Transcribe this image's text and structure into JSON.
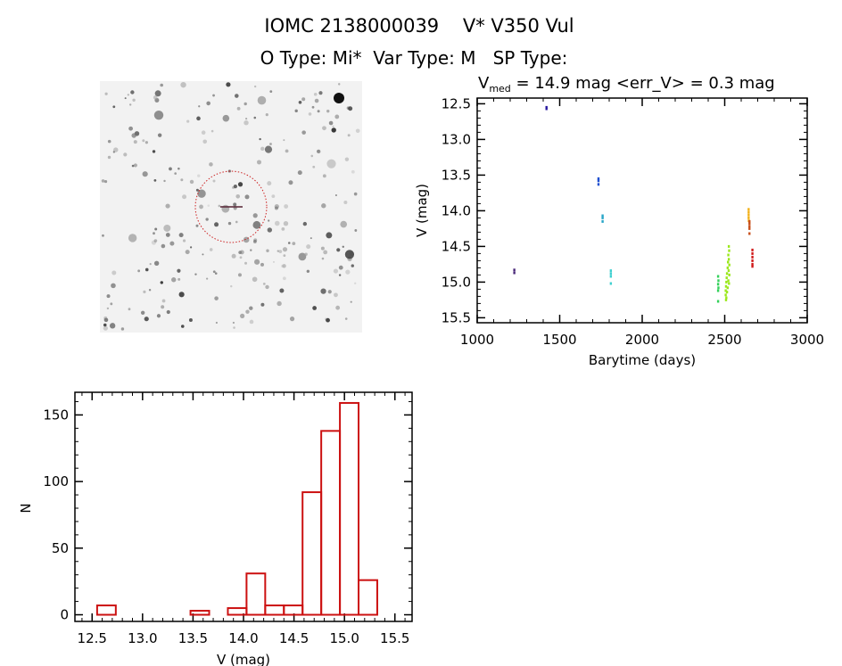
{
  "header": {
    "title": "IOMC 2138000039    V* V350 Vul",
    "subtitle": "O Type: Mi*  Var Type: M   SP Type:"
  },
  "thumbnail": {
    "type": "sky-image-cutout"
  },
  "chart_data": [
    {
      "type": "scatter",
      "title_main": "V",
      "title_sub": "med",
      "title_rest": " = 14.9 mag <err_V> = 0.3 mag",
      "xlabel": "Barytime (days)",
      "ylabel": "V (mag)",
      "xlim": [
        1000,
        3000
      ],
      "ylim": [
        15.57,
        12.42
      ],
      "xticks": [
        1000,
        1500,
        2000,
        2500,
        3000
      ],
      "yticks": [
        "12.5",
        "13.0",
        "13.5",
        "14.0",
        "14.5",
        "15.0",
        "15.5"
      ],
      "series": [
        {
          "name": "s1",
          "color": "#4b2a7a",
          "points": [
            [
              1225,
              14.83
            ],
            [
              1225,
              14.87
            ]
          ]
        },
        {
          "name": "s2",
          "color": "#2a1aa0",
          "points": [
            [
              1420,
              12.55
            ],
            [
              1420,
              12.57
            ]
          ]
        },
        {
          "name": "s3",
          "color": "#1f4fd0",
          "points": [
            [
              1735,
              13.55
            ],
            [
              1735,
              13.58
            ],
            [
              1735,
              13.63
            ]
          ]
        },
        {
          "name": "s4",
          "color": "#29a6c8",
          "points": [
            [
              1760,
              14.07
            ],
            [
              1760,
              14.1
            ],
            [
              1760,
              14.15
            ]
          ]
        },
        {
          "name": "s5",
          "color": "#40d0d0",
          "points": [
            [
              1810,
              14.84
            ],
            [
              1810,
              14.88
            ],
            [
              1810,
              14.92
            ],
            [
              1810,
              15.02
            ]
          ]
        },
        {
          "name": "s6",
          "color": "#33d15a",
          "points": [
            [
              2460,
              14.92
            ],
            [
              2462,
              14.98
            ],
            [
              2460,
              15.03
            ],
            [
              2462,
              15.08
            ],
            [
              2460,
              15.12
            ],
            [
              2460,
              15.27
            ]
          ]
        },
        {
          "name": "s7",
          "color": "#9be81c",
          "points": [
            [
              2525,
              14.5
            ],
            [
              2527,
              14.56
            ],
            [
              2522,
              14.62
            ],
            [
              2525,
              14.68
            ],
            [
              2520,
              14.72
            ],
            [
              2528,
              14.76
            ],
            [
              2518,
              14.8
            ],
            [
              2524,
              14.84
            ],
            [
              2514,
              14.88
            ],
            [
              2528,
              14.9
            ],
            [
              2512,
              14.94
            ],
            [
              2522,
              14.98
            ],
            [
              2510,
              15.0
            ],
            [
              2526,
              15.02
            ],
            [
              2508,
              15.06
            ],
            [
              2518,
              15.08
            ],
            [
              2506,
              15.12
            ],
            [
              2514,
              15.14
            ],
            [
              2506,
              15.18
            ],
            [
              2510,
              15.22
            ],
            [
              2508,
              15.25
            ]
          ]
        },
        {
          "name": "s8",
          "color": "#f2b21c",
          "points": [
            [
              2645,
              13.98
            ],
            [
              2645,
              14.02
            ],
            [
              2645,
              14.06
            ],
            [
              2645,
              14.1
            ],
            [
              2646,
              14.14
            ]
          ]
        },
        {
          "name": "s9",
          "color": "#c8501c",
          "points": [
            [
              2650,
              14.15
            ],
            [
              2650,
              14.18
            ],
            [
              2650,
              14.22
            ],
            [
              2650,
              14.25
            ],
            [
              2650,
              14.32
            ]
          ]
        },
        {
          "name": "s10",
          "color": "#d01a1a",
          "points": [
            [
              2668,
              14.55
            ],
            [
              2668,
              14.6
            ],
            [
              2668,
              14.65
            ],
            [
              2668,
              14.7
            ],
            [
              2668,
              14.75
            ],
            [
              2668,
              14.78
            ]
          ]
        }
      ]
    },
    {
      "type": "bar",
      "style": "histogram-outline",
      "color": "#cc1111",
      "xlabel": "V (mag)",
      "ylabel": "N",
      "xlim": [
        12.33,
        15.67
      ],
      "ylim": [
        -5,
        167
      ],
      "xticks": [
        "12.5",
        "13.0",
        "13.5",
        "14.0",
        "14.5",
        "15.0",
        "15.5"
      ],
      "yticks": [
        "0",
        "50",
        "100",
        "150"
      ],
      "bin_edges": [
        12.55,
        12.735,
        12.92,
        13.105,
        13.29,
        13.475,
        13.66,
        13.845,
        14.03,
        14.215,
        14.4,
        14.585,
        14.77,
        14.955,
        15.14,
        15.325
      ],
      "values": [
        7,
        0,
        0,
        0,
        0,
        3,
        0,
        5,
        31,
        7,
        7,
        92,
        138,
        159,
        26
      ]
    }
  ]
}
